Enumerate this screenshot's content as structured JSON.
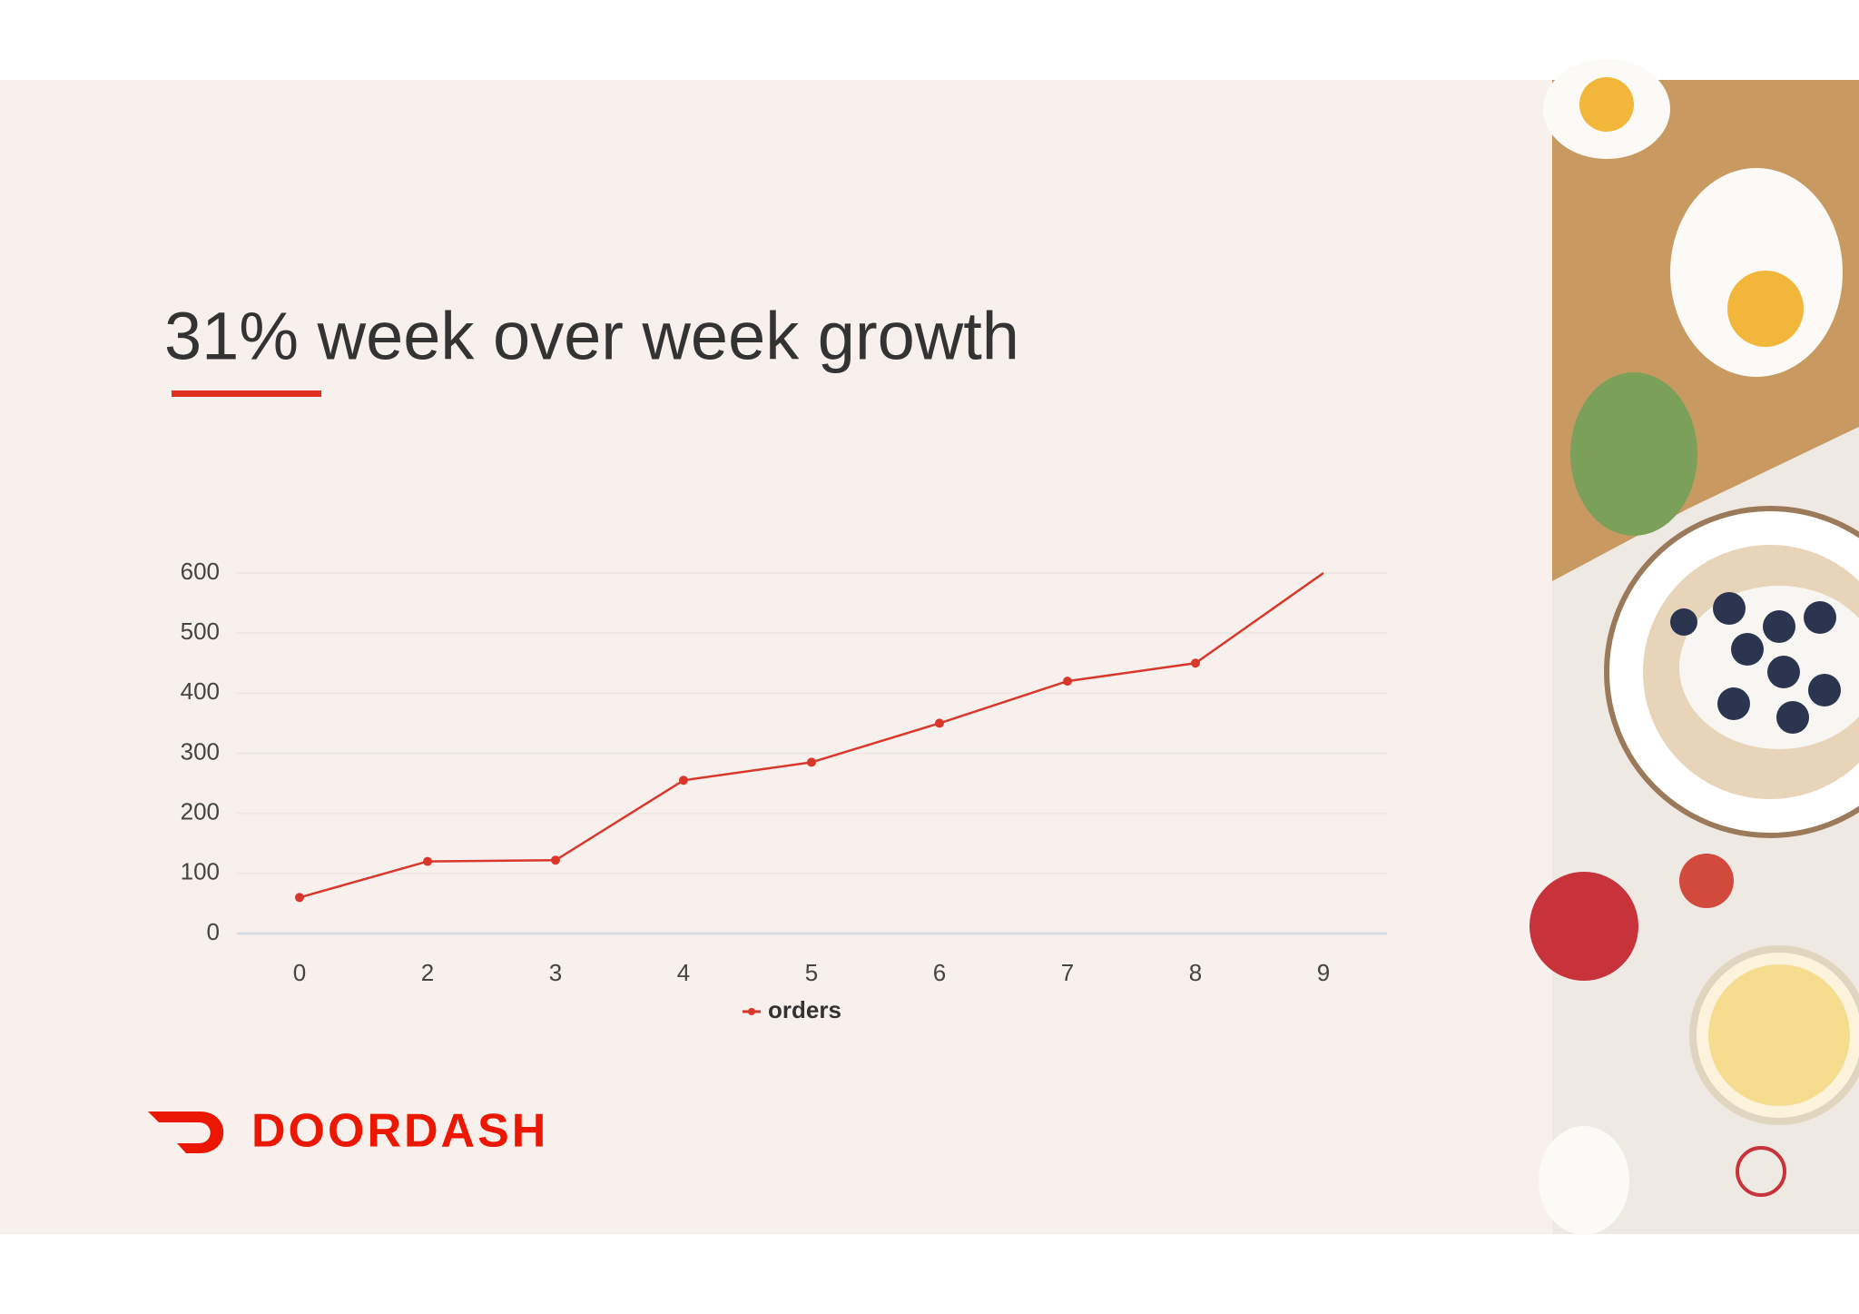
{
  "chart_data": {
    "type": "line",
    "title": "31% week over week growth",
    "categories": [
      "0",
      "2",
      "3",
      "4",
      "5",
      "6",
      "7",
      "8",
      "9"
    ],
    "series": [
      {
        "name": "orders",
        "color": "#d9372b",
        "values": [
          60,
          120,
          122,
          255,
          285,
          350,
          420,
          450,
          600
        ]
      }
    ],
    "ylim": [
      0,
      600
    ],
    "yticks": [
      0,
      100,
      200,
      300,
      400,
      500,
      600
    ],
    "grid": true
  },
  "logo": "DOORDASH"
}
